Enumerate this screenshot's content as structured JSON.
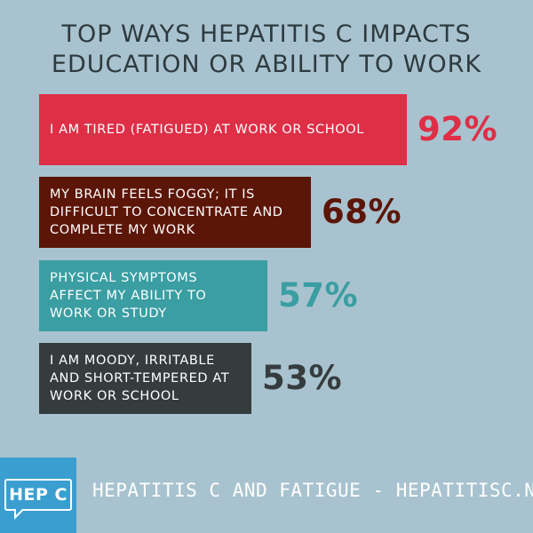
{
  "chart_data": {
    "type": "bar",
    "orientation": "horizontal",
    "title": "TOP WAYS HEPATITIS C IMPACTS EDUCATION OR ABILITY TO WORK",
    "title_lines": [
      "TOP WAYS HEPATITIS C IMPACTS",
      "EDUCATION OR ABILITY TO WORK"
    ],
    "categories": [
      "I AM TIRED (FATIGUED) AT WORK OR SCHOOL",
      "MY BRAIN FEELS FOGGY; IT IS DIFFICULT TO CONCENTRATE AND COMPLETE MY WORK",
      "PHYSICAL SYMPTOMS AFFECT MY ABILITY TO WORK OR STUDY",
      "I AM MOODY, IRRITABLE AND SHORT-TEMPERED AT WORK OR SCHOOL"
    ],
    "category_lines": [
      [
        "I AM TIRED (FATIGUED) AT WORK OR SCHOOL"
      ],
      [
        "MY BRAIN FEELS FOGGY; IT IS",
        "DIFFICULT TO CONCENTRATE AND",
        "COMPLETE MY WORK"
      ],
      [
        "PHYSICAL SYMPTOMS",
        "AFFECT MY ABILITY TO",
        "WORK OR STUDY"
      ],
      [
        "I AM MOODY, IRRITABLE",
        "AND SHORT-TEMPERED AT",
        "WORK OR SCHOOL"
      ]
    ],
    "values": [
      92,
      68,
      57,
      53
    ],
    "value_labels": [
      "92%",
      "68%",
      "57%",
      "53%"
    ],
    "colors": [
      "#de2f47",
      "#5c1608",
      "#3a9ea2",
      "#363c3e"
    ],
    "xlim": [
      0,
      100
    ],
    "grid": false,
    "xlabel": "",
    "ylabel": ""
  },
  "footer": {
    "badge": "HEP C",
    "badge_color": "#3a9fd0",
    "text": "HEPATITIS C AND FATIGUE - HEPATITISC.NET"
  },
  "colors": {
    "background": "#a8c3cf",
    "title": "#2e3a3f"
  }
}
